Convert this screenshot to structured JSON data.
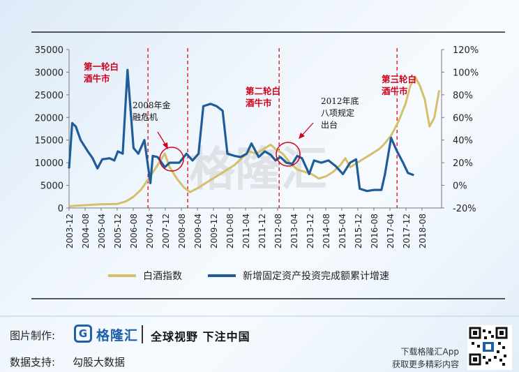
{
  "chart_data": {
    "type": "line",
    "x_tick_labels": [
      "2003-12",
      "2004-08",
      "2005-04",
      "2005-12",
      "2006-08",
      "2007-04",
      "2007-12",
      "2008-08",
      "2009-04",
      "2009-12",
      "2010-08",
      "2011-04",
      "2011-12",
      "2012-08",
      "2013-04",
      "2013-12",
      "2014-08",
      "2015-04",
      "2015-12",
      "2016-08",
      "2017-04",
      "2017-12",
      "2018-08"
    ],
    "y_left_ticks": [
      "0",
      "5000",
      "10000",
      "15000",
      "20000",
      "25000",
      "30000",
      "35000"
    ],
    "y_right_ticks": [
      "-20%",
      "0%",
      "20%",
      "40%",
      "60%",
      "80%",
      "100%",
      "120%"
    ],
    "ylim_left": [
      0,
      35000
    ],
    "ylim_right": [
      -20,
      120
    ],
    "series": [
      {
        "name": "白酒指数",
        "axis": "left",
        "color": "#d4bf6a",
        "points": [
          [
            2003.92,
            400
          ],
          [
            2004.5,
            600
          ],
          [
            2005.2,
            800
          ],
          [
            2005.92,
            900
          ],
          [
            2006.3,
            1500
          ],
          [
            2006.6,
            2500
          ],
          [
            2006.9,
            4000
          ],
          [
            2007.3,
            7000
          ],
          [
            2007.6,
            9500
          ],
          [
            2007.9,
            12000
          ],
          [
            2008.1,
            9000
          ],
          [
            2008.4,
            6500
          ],
          [
            2008.7,
            4500
          ],
          [
            2008.95,
            3500
          ],
          [
            2009.3,
            4500
          ],
          [
            2009.6,
            5500
          ],
          [
            2009.9,
            6500
          ],
          [
            2010.2,
            7500
          ],
          [
            2010.5,
            8500
          ],
          [
            2010.8,
            9500
          ],
          [
            2011.1,
            11000
          ],
          [
            2011.4,
            12500
          ],
          [
            2011.7,
            12000
          ],
          [
            2012.0,
            13000
          ],
          [
            2012.3,
            14000
          ],
          [
            2012.5,
            13000
          ],
          [
            2012.8,
            12000
          ],
          [
            2013.1,
            10000
          ],
          [
            2013.4,
            8500
          ],
          [
            2013.7,
            8000
          ],
          [
            2014.0,
            7500
          ],
          [
            2014.3,
            6500
          ],
          [
            2014.6,
            7000
          ],
          [
            2014.9,
            8000
          ],
          [
            2015.2,
            9500
          ],
          [
            2015.4,
            11000
          ],
          [
            2015.6,
            9000
          ],
          [
            2015.9,
            10000
          ],
          [
            2016.2,
            11000
          ],
          [
            2016.5,
            12000
          ],
          [
            2016.8,
            13000
          ],
          [
            2017.0,
            14000
          ],
          [
            2017.3,
            16000
          ],
          [
            2017.6,
            19000
          ],
          [
            2017.9,
            23000
          ],
          [
            2018.1,
            27000
          ],
          [
            2018.3,
            29000
          ],
          [
            2018.5,
            27000
          ],
          [
            2018.7,
            24000
          ],
          [
            2018.9,
            18000
          ],
          [
            2019.1,
            20000
          ],
          [
            2019.3,
            26000
          ]
        ]
      },
      {
        "name": "新增固定资产投资完成额累计增速",
        "axis": "right",
        "color": "#1f5c99",
        "points": [
          [
            2003.92,
            15
          ],
          [
            2004.05,
            55
          ],
          [
            2004.2,
            52
          ],
          [
            2004.4,
            40
          ],
          [
            2004.7,
            30
          ],
          [
            2004.9,
            24
          ],
          [
            2005.1,
            15
          ],
          [
            2005.3,
            23
          ],
          [
            2005.6,
            24
          ],
          [
            2005.8,
            22
          ],
          [
            2005.95,
            30
          ],
          [
            2006.15,
            28
          ],
          [
            2006.35,
            102
          ],
          [
            2006.6,
            33
          ],
          [
            2006.8,
            28
          ],
          [
            2007.05,
            40
          ],
          [
            2007.3,
            2
          ],
          [
            2007.4,
            26
          ],
          [
            2007.6,
            25
          ],
          [
            2007.9,
            16
          ],
          [
            2008.1,
            20
          ],
          [
            2008.3,
            20
          ],
          [
            2008.5,
            20
          ],
          [
            2008.8,
            28
          ],
          [
            2009.05,
            22
          ],
          [
            2009.3,
            28
          ],
          [
            2009.5,
            70
          ],
          [
            2009.8,
            72
          ],
          [
            2010.05,
            70
          ],
          [
            2010.3,
            66
          ],
          [
            2010.5,
            28
          ],
          [
            2010.8,
            26
          ],
          [
            2011.05,
            25
          ],
          [
            2011.3,
            28
          ],
          [
            2011.5,
            37
          ],
          [
            2011.8,
            25
          ],
          [
            2012.05,
            30
          ],
          [
            2012.3,
            27
          ],
          [
            2012.5,
            22
          ],
          [
            2012.7,
            25
          ],
          [
            2012.95,
            20
          ],
          [
            2013.2,
            19
          ],
          [
            2013.4,
            26
          ],
          [
            2013.6,
            24
          ],
          [
            2013.9,
            10
          ],
          [
            2014.1,
            22
          ],
          [
            2014.4,
            20
          ],
          [
            2014.7,
            22
          ],
          [
            2015.0,
            17
          ],
          [
            2015.3,
            10
          ],
          [
            2015.6,
            20
          ],
          [
            2015.85,
            23
          ],
          [
            2016.0,
            -3
          ],
          [
            2016.3,
            -5
          ],
          [
            2016.6,
            -4
          ],
          [
            2016.9,
            -4
          ],
          [
            2017.05,
            10
          ],
          [
            2017.3,
            42
          ],
          [
            2017.55,
            30
          ],
          [
            2017.8,
            20
          ],
          [
            2018.0,
            11
          ],
          [
            2018.25,
            9
          ]
        ]
      }
    ],
    "vlines": [
      2007.2,
      2008.85,
      2012.65,
      2017.55
    ],
    "annotations": [
      {
        "lines": [
          "第一轮白",
          "酒牛市"
        ],
        "color": "#d0021b"
      },
      {
        "lines": [
          "第二轮白",
          "酒牛市"
        ],
        "color": "#d0021b"
      },
      {
        "lines": [
          "第三轮白",
          "酒牛市"
        ],
        "color": "#d0021b"
      },
      {
        "lines": [
          "2008年金",
          "融危机"
        ],
        "color": "#111111"
      },
      {
        "lines": [
          "2012年底",
          "八项规定",
          "出台"
        ],
        "color": "#111111"
      }
    ]
  },
  "watermark": "格隆汇",
  "footer": {
    "label_made_by": "图片制作:",
    "logo_mark": "G",
    "brand": "格隆汇",
    "slogan": "全球视野 下注中国",
    "label_data_support": "数据支持:",
    "data_source": "勾股大数据",
    "download_line1": "下载格隆汇App",
    "download_line2": "获取更多精彩内容"
  }
}
